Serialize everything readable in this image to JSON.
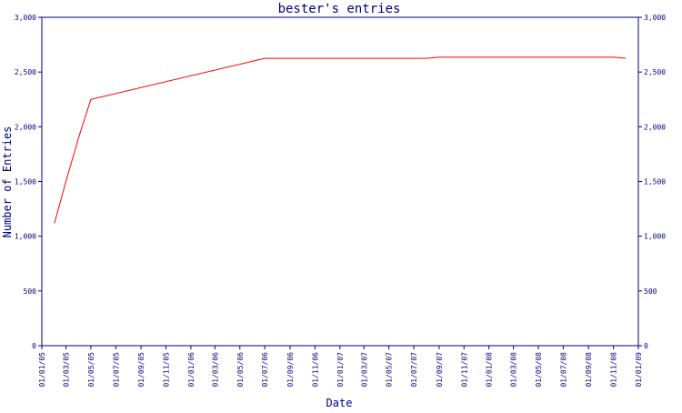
{
  "chart_data": {
    "type": "line",
    "title": "bester's entries",
    "xlabel": "Date",
    "ylabel": "Number of Entries",
    "ylim": [
      0,
      3000
    ],
    "y_ticks": [
      {
        "value": 0,
        "label": "0"
      },
      {
        "value": 500,
        "label": "500"
      },
      {
        "value": 1000,
        "label": "1,000"
      },
      {
        "value": 1500,
        "label": "1,500"
      },
      {
        "value": 2000,
        "label": "2,000"
      },
      {
        "value": 2500,
        "label": "2,500"
      },
      {
        "value": 3000,
        "label": "3,000"
      }
    ],
    "x_ticks": [
      "01/01/05",
      "01/03/05",
      "01/05/05",
      "01/07/05",
      "01/09/05",
      "01/11/05",
      "01/01/06",
      "01/03/06",
      "01/05/06",
      "01/07/06",
      "01/09/06",
      "01/11/06",
      "01/01/07",
      "01/03/07",
      "01/05/07",
      "01/07/07",
      "01/09/07",
      "01/11/07",
      "01/01/08",
      "01/03/08",
      "01/05/08",
      "01/07/08",
      "01/09/08",
      "01/11/08",
      "01/01/09"
    ],
    "xlim": [
      "01/01/05",
      "01/01/09"
    ],
    "grid": false,
    "colors": {
      "line": "#ff0000",
      "axes": "#000080",
      "text": "#000080",
      "background": "#ffffff"
    },
    "series": [
      {
        "points": [
          {
            "x": "01/02/05",
            "y": 1120
          },
          {
            "x": "01/03/05",
            "y": 1500
          },
          {
            "x": "01/04/05",
            "y": 1900
          },
          {
            "x": "01/05/05",
            "y": 2250
          },
          {
            "x": "01/07/06",
            "y": 2625
          },
          {
            "x": "01/08/07",
            "y": 2625
          },
          {
            "x": "01/09/07",
            "y": 2635
          },
          {
            "x": "01/11/08",
            "y": 2635
          },
          {
            "x": "01/12/08",
            "y": 2625
          }
        ]
      }
    ]
  }
}
